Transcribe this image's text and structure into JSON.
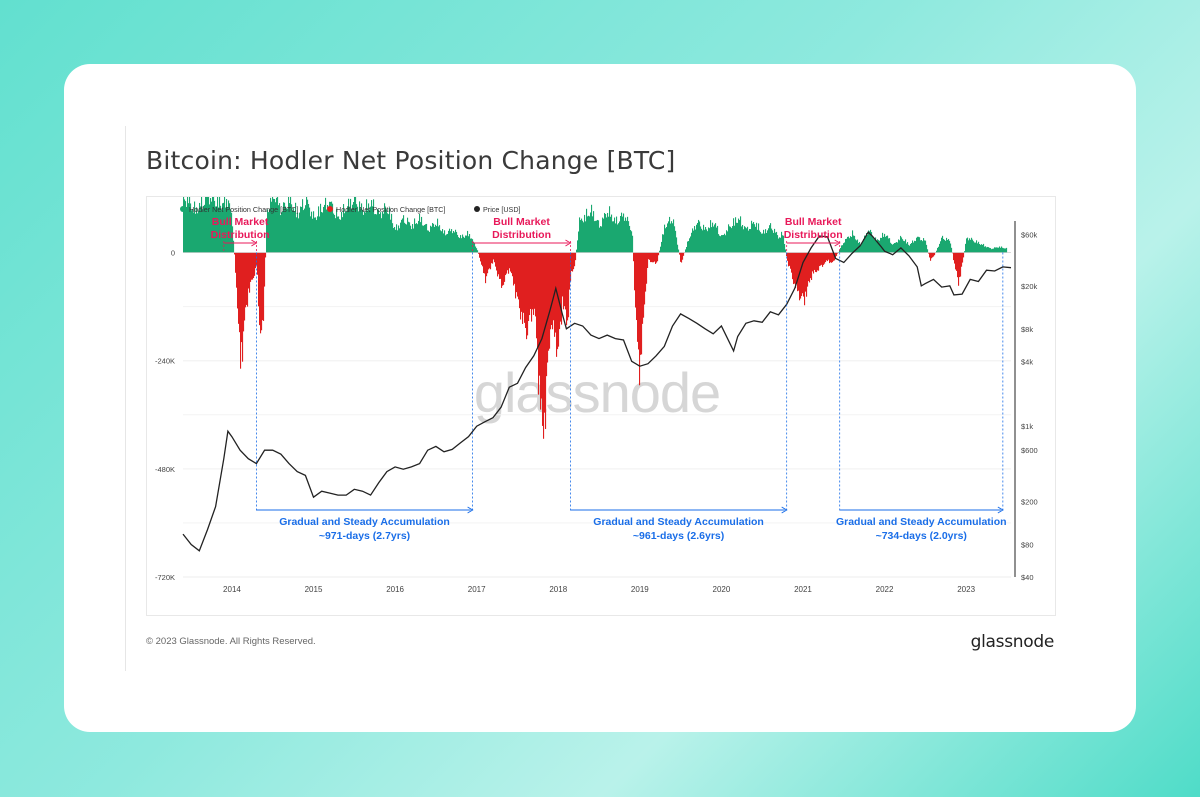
{
  "title": "Bitcoin: Hodler Net Position Change [BTC]",
  "footer": {
    "copyright": "© 2023 Glassnode. All Rights Reserved.",
    "brand": "glassnode"
  },
  "watermark": "glassnode",
  "colors": {
    "positive": "#1aa870",
    "negative": "#e01f1f",
    "price": "#222222",
    "distribution": "#e8195a",
    "accumulation": "#1a6ee8"
  },
  "chart_data": {
    "type": "area",
    "legend_position": "top-left",
    "legend": [
      {
        "name": "Hodler Net Position Change [BTC]",
        "color": "#1aa870"
      },
      {
        "name": "Hodler Net Position Change [BTC]",
        "color": "#e01f1f"
      },
      {
        "name": "Price [USD]",
        "color": "#222222"
      }
    ],
    "x_ticks": [
      "2014",
      "2015",
      "2016",
      "2017",
      "2018",
      "2019",
      "2020",
      "2021",
      "2022",
      "2023"
    ],
    "x_range": [
      2013.4,
      2023.55
    ],
    "y_left_ticks": [
      "0",
      "-240K",
      "-480K",
      "-720K"
    ],
    "y_left_range": [
      -720000,
      70000
    ],
    "y_right_ticks": [
      "$60k",
      "$20k",
      "$8k",
      "$4k",
      "$1k",
      "$600",
      "$200",
      "$80",
      "$40"
    ],
    "y_right_scale": "log",
    "net_position_series": [
      [
        2013.4,
        150000
      ],
      [
        2013.55,
        110000
      ],
      [
        2013.7,
        150000
      ],
      [
        2013.85,
        130000
      ],
      [
        2013.95,
        140000
      ],
      [
        2014.0,
        80000
      ],
      [
        2014.05,
        -90000
      ],
      [
        2014.1,
        -300000
      ],
      [
        2014.15,
        -180000
      ],
      [
        2014.2,
        -100000
      ],
      [
        2014.25,
        -70000
      ],
      [
        2014.3,
        -30000
      ],
      [
        2014.33,
        -190000
      ],
      [
        2014.38,
        -200000
      ],
      [
        2014.42,
        100000
      ],
      [
        2014.5,
        160000
      ],
      [
        2014.6,
        110000
      ],
      [
        2014.7,
        140000
      ],
      [
        2014.8,
        100000
      ],
      [
        2014.9,
        140000
      ],
      [
        2015.0,
        90000
      ],
      [
        2015.1,
        120000
      ],
      [
        2015.2,
        130000
      ],
      [
        2015.3,
        90000
      ],
      [
        2015.4,
        120000
      ],
      [
        2015.5,
        140000
      ],
      [
        2015.6,
        110000
      ],
      [
        2015.7,
        130000
      ],
      [
        2015.8,
        100000
      ],
      [
        2015.9,
        120000
      ],
      [
        2016.0,
        60000
      ],
      [
        2016.1,
        90000
      ],
      [
        2016.2,
        70000
      ],
      [
        2016.3,
        90000
      ],
      [
        2016.4,
        60000
      ],
      [
        2016.5,
        80000
      ],
      [
        2016.6,
        50000
      ],
      [
        2016.7,
        60000
      ],
      [
        2016.8,
        40000
      ],
      [
        2016.9,
        50000
      ],
      [
        2017.0,
        10000
      ],
      [
        2017.1,
        -70000
      ],
      [
        2017.2,
        -20000
      ],
      [
        2017.3,
        -90000
      ],
      [
        2017.4,
        -40000
      ],
      [
        2017.5,
        -130000
      ],
      [
        2017.6,
        -210000
      ],
      [
        2017.7,
        -140000
      ],
      [
        2017.8,
        -480000
      ],
      [
        2017.85,
        -380000
      ],
      [
        2017.9,
        -180000
      ],
      [
        2018.0,
        -260000
      ],
      [
        2018.05,
        -120000
      ],
      [
        2018.1,
        -200000
      ],
      [
        2018.15,
        -60000
      ],
      [
        2018.2,
        -30000
      ],
      [
        2018.25,
        80000
      ],
      [
        2018.4,
        110000
      ],
      [
        2018.5,
        70000
      ],
      [
        2018.6,
        110000
      ],
      [
        2018.7,
        80000
      ],
      [
        2018.8,
        100000
      ],
      [
        2018.9,
        60000
      ],
      [
        2018.95,
        -200000
      ],
      [
        2019.0,
        -320000
      ],
      [
        2019.05,
        -130000
      ],
      [
        2019.1,
        -20000
      ],
      [
        2019.2,
        -30000
      ],
      [
        2019.3,
        70000
      ],
      [
        2019.4,
        90000
      ],
      [
        2019.5,
        -30000
      ],
      [
        2019.6,
        40000
      ],
      [
        2019.7,
        80000
      ],
      [
        2019.8,
        60000
      ],
      [
        2019.9,
        80000
      ],
      [
        2020.0,
        40000
      ],
      [
        2020.1,
        70000
      ],
      [
        2020.2,
        90000
      ],
      [
        2020.3,
        60000
      ],
      [
        2020.4,
        80000
      ],
      [
        2020.5,
        50000
      ],
      [
        2020.6,
        70000
      ],
      [
        2020.7,
        40000
      ],
      [
        2020.75,
        50000
      ],
      [
        2020.8,
        -20000
      ],
      [
        2020.9,
        -90000
      ],
      [
        2021.0,
        -130000
      ],
      [
        2021.1,
        -60000
      ],
      [
        2021.2,
        -40000
      ],
      [
        2021.3,
        -20000
      ],
      [
        2021.35,
        -30000
      ],
      [
        2021.4,
        -10000
      ],
      [
        2021.5,
        30000
      ],
      [
        2021.6,
        50000
      ],
      [
        2021.7,
        20000
      ],
      [
        2021.8,
        60000
      ],
      [
        2021.9,
        30000
      ],
      [
        2022.0,
        50000
      ],
      [
        2022.1,
        20000
      ],
      [
        2022.2,
        40000
      ],
      [
        2022.3,
        20000
      ],
      [
        2022.4,
        40000
      ],
      [
        2022.5,
        30000
      ],
      [
        2022.55,
        -20000
      ],
      [
        2022.6,
        -10000
      ],
      [
        2022.7,
        40000
      ],
      [
        2022.8,
        30000
      ],
      [
        2022.85,
        -30000
      ],
      [
        2022.9,
        -80000
      ],
      [
        2022.95,
        -30000
      ],
      [
        2023.0,
        40000
      ],
      [
        2023.1,
        30000
      ],
      [
        2023.2,
        20000
      ],
      [
        2023.3,
        10000
      ],
      [
        2023.4,
        15000
      ],
      [
        2023.5,
        10000
      ]
    ],
    "price_series": [
      [
        2013.4,
        100
      ],
      [
        2013.5,
        80
      ],
      [
        2013.6,
        70
      ],
      [
        2013.7,
        110
      ],
      [
        2013.8,
        180
      ],
      [
        2013.9,
        500
      ],
      [
        2013.95,
        900
      ],
      [
        2014.0,
        800
      ],
      [
        2014.1,
        600
      ],
      [
        2014.2,
        500
      ],
      [
        2014.3,
        450
      ],
      [
        2014.4,
        600
      ],
      [
        2014.5,
        600
      ],
      [
        2014.6,
        550
      ],
      [
        2014.7,
        450
      ],
      [
        2014.8,
        380
      ],
      [
        2014.9,
        350
      ],
      [
        2015.0,
        220
      ],
      [
        2015.1,
        250
      ],
      [
        2015.2,
        240
      ],
      [
        2015.3,
        230
      ],
      [
        2015.4,
        230
      ],
      [
        2015.5,
        260
      ],
      [
        2015.6,
        250
      ],
      [
        2015.7,
        230
      ],
      [
        2015.8,
        300
      ],
      [
        2015.9,
        380
      ],
      [
        2016.0,
        420
      ],
      [
        2016.1,
        400
      ],
      [
        2016.2,
        420
      ],
      [
        2016.3,
        450
      ],
      [
        2016.4,
        600
      ],
      [
        2016.5,
        650
      ],
      [
        2016.6,
        580
      ],
      [
        2016.7,
        610
      ],
      [
        2016.8,
        700
      ],
      [
        2016.9,
        800
      ],
      [
        2017.0,
        1000
      ],
      [
        2017.1,
        1100
      ],
      [
        2017.2,
        1200
      ],
      [
        2017.3,
        1500
      ],
      [
        2017.4,
        2300
      ],
      [
        2017.5,
        2500
      ],
      [
        2017.6,
        3500
      ],
      [
        2017.7,
        4500
      ],
      [
        2017.8,
        6500
      ],
      [
        2017.9,
        12000
      ],
      [
        2017.97,
        19000
      ],
      [
        2018.05,
        11000
      ],
      [
        2018.1,
        8000
      ],
      [
        2018.2,
        9000
      ],
      [
        2018.3,
        8500
      ],
      [
        2018.4,
        7000
      ],
      [
        2018.5,
        6500
      ],
      [
        2018.6,
        7000
      ],
      [
        2018.7,
        6500
      ],
      [
        2018.8,
        6300
      ],
      [
        2018.9,
        4000
      ],
      [
        2019.0,
        3600
      ],
      [
        2019.1,
        3800
      ],
      [
        2019.2,
        4500
      ],
      [
        2019.3,
        5500
      ],
      [
        2019.4,
        8500
      ],
      [
        2019.5,
        11000
      ],
      [
        2019.6,
        10000
      ],
      [
        2019.7,
        9000
      ],
      [
        2019.8,
        8000
      ],
      [
        2019.9,
        7200
      ],
      [
        2020.0,
        8500
      ],
      [
        2020.15,
        5000
      ],
      [
        2020.2,
        6800
      ],
      [
        2020.3,
        9000
      ],
      [
        2020.4,
        9500
      ],
      [
        2020.5,
        9200
      ],
      [
        2020.6,
        11500
      ],
      [
        2020.7,
        10800
      ],
      [
        2020.8,
        13500
      ],
      [
        2020.9,
        19000
      ],
      [
        2021.0,
        33000
      ],
      [
        2021.1,
        45000
      ],
      [
        2021.2,
        58000
      ],
      [
        2021.3,
        57000
      ],
      [
        2021.4,
        36000
      ],
      [
        2021.5,
        33000
      ],
      [
        2021.6,
        40000
      ],
      [
        2021.7,
        47000
      ],
      [
        2021.8,
        63000
      ],
      [
        2021.85,
        58000
      ],
      [
        2021.95,
        47000
      ],
      [
        2022.0,
        42000
      ],
      [
        2022.1,
        39000
      ],
      [
        2022.2,
        45000
      ],
      [
        2022.3,
        38000
      ],
      [
        2022.4,
        30000
      ],
      [
        2022.45,
        20000
      ],
      [
        2022.5,
        21000
      ],
      [
        2022.6,
        23000
      ],
      [
        2022.7,
        19500
      ],
      [
        2022.8,
        20000
      ],
      [
        2022.85,
        16500
      ],
      [
        2022.95,
        16800
      ],
      [
        2023.05,
        23000
      ],
      [
        2023.15,
        22000
      ],
      [
        2023.25,
        28000
      ],
      [
        2023.35,
        27500
      ],
      [
        2023.45,
        30000
      ],
      [
        2023.55,
        29500
      ]
    ],
    "annotations": {
      "distribution": [
        {
          "label": "Bull Market Distribution",
          "label_line1": "Bull Market",
          "label_line2": "Distribution",
          "x0": 2013.9,
          "x1": 2014.3
        },
        {
          "label": "Bull Market Distribution",
          "label_line1": "Bull Market",
          "label_line2": "Distribution",
          "x0": 2016.95,
          "x1": 2018.15
        },
        {
          "label": "Bull Market Distribution",
          "label_line1": "Bull Market",
          "label_line2": "Distribution",
          "x0": 2020.8,
          "x1": 2021.45
        }
      ],
      "accumulation": [
        {
          "line1": "Gradual and Steady Accumulation",
          "line2": "~971-days (2.7yrs)",
          "x0": 2014.3,
          "x1": 2016.95
        },
        {
          "line1": "Gradual and Steady Accumulation",
          "line2": "~961-days (2.6yrs)",
          "x0": 2018.15,
          "x1": 2020.8
        },
        {
          "line1": "Gradual and Steady Accumulation",
          "line2": "~734-days (2.0yrs)",
          "x0": 2021.45,
          "x1": 2023.45
        }
      ]
    }
  }
}
